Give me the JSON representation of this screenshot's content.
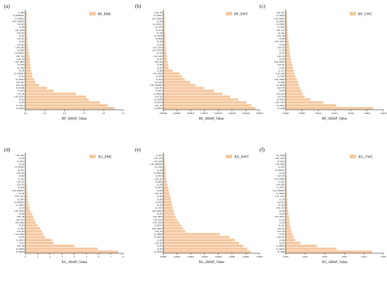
{
  "colors": {
    "bar": "#F5C79E",
    "axis": "#000000"
  },
  "chart_data": [
    {
      "type": "bar",
      "orientation": "horizontal",
      "panel_label": "(a)",
      "legend": "RF_FMC",
      "legend_position": "top-right",
      "xlabel": "RF_SHAP_Value",
      "xlim": [
        0,
        2.5
      ],
      "xticks": [
        "0.0",
        "0.5",
        "1.0",
        "1.5",
        "2.0",
        "2.5"
      ],
      "categories": [
        "S2_B02",
        "S2_MNDWI1",
        "S2_NDWI2",
        "UAV_MNDWI",
        "UAV_B5",
        "S2_B6",
        "UAV_PRSI",
        "UAV_B2",
        "S2_B1",
        "UAV_B1",
        "S2_B7",
        "UAV_B3",
        "UAV_MSI",
        "S2_B8A",
        "S2_NDWI1",
        "UAV_EVI",
        "UAV_B4",
        "UAV_PRSI",
        "S2_MSI",
        "S2_SAVI",
        "S2_SR",
        "S2_MNDWI",
        "S2_B5",
        "S2_NDWI",
        "UAV_B11",
        "UAV_B12",
        "S2_SWIR",
        "S2_EVI",
        "UAV_SR",
        "UAV_NDVI",
        "S2_B3",
        "S2_B4",
        "S2_NDVI",
        "S2_NMDI"
      ],
      "values": [
        0.03,
        0.03,
        0.03,
        0.03,
        0.04,
        0.04,
        0.04,
        0.04,
        0.05,
        0.05,
        0.05,
        0.06,
        0.07,
        0.08,
        0.09,
        0.1,
        0.11,
        0.12,
        0.13,
        0.14,
        0.15,
        0.17,
        0.18,
        0.22,
        0.25,
        0.35,
        0.55,
        0.72,
        1.3,
        1.55,
        1.62,
        1.9,
        2.1,
        2.28
      ]
    },
    {
      "type": "bar",
      "orientation": "horizontal",
      "panel_label": "(b)",
      "legend": "RF_EWT",
      "legend_position": "top-right",
      "xlabel": "RF_SHAP_Value",
      "xlim": [
        0,
        0.00036
      ],
      "xticks": [
        "0.00000",
        "0.00005",
        "0.00010",
        "0.00015",
        "0.00020",
        "0.00025",
        "0.00030",
        "0.00035"
      ],
      "categories": [
        "UAV_SR",
        "S2_NDWI",
        "UAV_NDWI",
        "S2_B4",
        "S2_NDWI1",
        "S2_SAVI",
        "S2_EVI",
        "S2_SR",
        "S2_NDVI",
        "S2_B8A",
        "S2_B6",
        "S2_B3",
        "UAV_SAVI",
        "UAV_NDVI",
        "S2_B2",
        "UAV_MSI",
        "S2_B1",
        "UAV_B5",
        "S2_B5",
        "S2_B7",
        "S2_B8",
        "UAV_PRSI",
        "S2_MSI",
        "S2_B12",
        "S2_SAVI",
        "UAV_MNDWI",
        "UAV_B1",
        "S2_B11",
        "S2_NMDI",
        "UAV_B3",
        "S2_SWIR",
        "S2_NDVI",
        "UAV_B4",
        "S2_NMDI"
      ],
      "values": [
        4e-06,
        4e-06,
        5e-06,
        5e-06,
        5e-06,
        6e-06,
        6e-06,
        7e-06,
        7e-06,
        8e-06,
        8e-06,
        9e-06,
        1e-05,
        1.1e-05,
        1.2e-05,
        1.3e-05,
        1.4e-05,
        1.6e-05,
        1.8e-05,
        2e-05,
        3.5e-05,
        6e-05,
        7e-05,
        8e-05,
        0.0001,
        0.00012,
        0.00015,
        0.00019,
        0.00022,
        0.00025,
        0.00028,
        0.00031,
        0.00033,
        0.000345
      ]
    },
    {
      "type": "bar",
      "orientation": "horizontal",
      "panel_label": "(c)",
      "legend": "RF_CWC",
      "legend_position": "top-right",
      "xlabel": "RF_SHAP_Value",
      "xlim": [
        0,
        0.003
      ],
      "xticks": [
        "0.0000",
        "0.0005",
        "0.0010",
        "0.0015",
        "0.0020",
        "0.0025",
        "0.0030"
      ],
      "categories": [
        "UAV_B11",
        "S2_NDWI",
        "UAV_NDWI",
        "S2_NMDI",
        "S2_NDRE",
        "S2_PRSI",
        "UAV_EVI",
        "S2_B12",
        "UAV_SR",
        "S2_B8",
        "UAV_NDVI",
        "S2_B6",
        "UAV_B5",
        "S2_SR",
        "S2_B1",
        "UAV_B2",
        "S2_B4",
        "UAV_NDWI",
        "UAV_B1",
        "S2_B7",
        "S2_EVI",
        "UAV_MSI",
        "S2_SAVI",
        "UAV_NMDI",
        "S2_B8A",
        "S2_SWIR",
        "UAV_B3",
        "S2_B5",
        "UAV_MSI",
        "UAV_B4",
        "S2_NDVI",
        "UAV_SAVI",
        "S2_NDVI",
        "S2_NDII"
      ],
      "values": [
        3e-05,
        3e-05,
        4e-05,
        4e-05,
        5e-05,
        5e-05,
        6e-05,
        6e-05,
        7e-05,
        8e-05,
        9e-05,
        0.0001,
        0.00011,
        0.00012,
        0.00013,
        0.00014,
        0.00016,
        0.00018,
        0.0002,
        0.00022,
        0.00025,
        0.00027,
        0.0003,
        0.00034,
        0.00038,
        0.0004,
        0.00044,
        0.00048,
        0.00052,
        0.00058,
        0.00075,
        0.00115,
        0.00155,
        0.00268
      ]
    },
    {
      "type": "bar",
      "orientation": "horizontal",
      "panel_label": "(d)",
      "legend": "XG_FMC",
      "legend_position": "top-right",
      "xlabel": "XG_SHAP_Value",
      "xlim": [
        0,
        8
      ],
      "xticks": [
        "0",
        "1",
        "2",
        "3",
        "4",
        "5",
        "6",
        "7",
        "8"
      ],
      "categories": [
        "UAV_MSI",
        "S2_B5",
        "S2_PRSI",
        "S2_B6",
        "S2_NDWI1",
        "S2_B11",
        "UAV_B2",
        "S2_B2",
        "S2_B12",
        "UAV_B1",
        "UAV_B3",
        "S2_B8A",
        "UAV_MNDWI",
        "S2_SR",
        "UAV_SAVI",
        "S2_SAVI",
        "S2_MNDWI",
        "S2_NDWI",
        "S2_B4",
        "UAV_NDVI",
        "S2_B6",
        "UAV_SR",
        "UAV_EVI",
        "UAV_PRSI",
        "S2_B3",
        "S2_MSI",
        "UAV_B4",
        "UAV_PRSI",
        "S2_B1",
        "S2_NDVI",
        "S2_B7",
        "UAV_SR",
        "S2_NMDI",
        "S2_NMDI"
      ],
      "values": [
        0.03,
        0.03,
        0.04,
        0.04,
        0.05,
        0.05,
        0.06,
        0.06,
        0.07,
        0.08,
        0.1,
        0.12,
        0.14,
        0.16,
        0.18,
        0.2,
        0.24,
        0.28,
        0.32,
        0.4,
        0.55,
        0.65,
        0.75,
        0.85,
        1.0,
        1.2,
        1.35,
        1.45,
        1.6,
        2.2,
        2.3,
        4.0,
        5.9,
        7.6
      ]
    },
    {
      "type": "bar",
      "orientation": "horizontal",
      "panel_label": "(e)",
      "legend": "XG_EWT",
      "legend_position": "top-right",
      "xlabel": "XG_SHAP_Value",
      "xlim": [
        0,
        0.0007
      ],
      "xticks": [
        "0.0000",
        "0.0001",
        "0.0002",
        "0.0003",
        "0.0004",
        "0.0005",
        "0.0006",
        "0.0007"
      ],
      "categories": [
        "S2_B11",
        "UAV_EVI",
        "UAV_MSI",
        "UAV_MNDWI",
        "S2_SAVI",
        "S2_B3",
        "S2_NDWI",
        "S2_B12",
        "UAV_B1",
        "S2_B8A",
        "S2_SR",
        "S2_PRSI",
        "S2_B4",
        "UAV_B2",
        "S2_B6",
        "S2_B8",
        "S2_MSI",
        "S2_B5",
        "S2_SAVI",
        "UAV_NDWI",
        "S2_B7",
        "UAV_PRSI",
        "UAV_MSI",
        "UAV_SAVI",
        "S2_NDVI",
        "UAV_NDWI",
        "UAV_B4",
        "S2_NDRE",
        "S2_NDVI",
        "S2_SR",
        "UAV_B3",
        "S2_B1",
        "S2_B2",
        "S2_NDVI"
      ],
      "values": [
        8e-06,
        9e-06,
        1e-05,
        1.2e-05,
        1.4e-05,
        1.6e-05,
        1.8e-05,
        2e-05,
        2.3e-05,
        2.6e-05,
        3e-05,
        3.4e-05,
        4e-05,
        4.5e-05,
        5e-05,
        5.5e-05,
        6e-05,
        6.5e-05,
        7e-05,
        7.5e-05,
        8e-05,
        9e-05,
        0.0001,
        0.000115,
        0.00013,
        0.000145,
        0.00016,
        0.00041,
        0.00048,
        0.00052,
        0.00055,
        0.00058,
        0.00061,
        0.000635
      ]
    },
    {
      "type": "bar",
      "orientation": "horizontal",
      "panel_label": "(f)",
      "legend": "XG_CWC",
      "legend_position": "top-right",
      "xlabel": "XG_SHAP_Value",
      "xlim": [
        0,
        0.005
      ],
      "xticks": [
        "0.000",
        "0.001",
        "0.002",
        "0.003",
        "0.004",
        "0.005"
      ],
      "categories": [
        "S2_SWIR",
        "UAV_SAVI",
        "S2_PRSI",
        "UAV_PRSI",
        "S2_B12",
        "S2_NDWI1",
        "S2_B2",
        "UAV_B3",
        "UAV_NMDI",
        "S2_B11",
        "UAV_MSI",
        "S2_NDVI",
        "UAV_MNDWI",
        "S2_NMDI",
        "UAV_SAVI",
        "S2_SR",
        "UAV_B5",
        "S2_MSI",
        "UAV_EVI",
        "S2_B8",
        "S2_B4",
        "UAV_NDVI",
        "S2_SR",
        "S2_B5",
        "S2_B11",
        "UAV_B1",
        "UAV_B4",
        "S2_B3",
        "UAV_B2",
        "S2_B6",
        "S2_B1",
        "S2_NMDI",
        "S2_NDWI",
        "S2_NDII"
      ],
      "values": [
        1e-05,
        1e-05,
        1.2e-05,
        1.4e-05,
        1.6e-05,
        2e-05,
        2.4e-05,
        2.8e-05,
        3.2e-05,
        3.6e-05,
        4e-05,
        4.5e-05,
        5e-05,
        5.5e-05,
        6e-05,
        7e-05,
        8e-05,
        9e-05,
        0.0001,
        0.00012,
        0.00014,
        0.00016,
        0.00018,
        0.0002,
        0.00023,
        0.00026,
        0.0003,
        0.00035,
        0.0004,
        0.00048,
        0.00075,
        0.0016,
        0.0026,
        0.0044
      ]
    }
  ]
}
